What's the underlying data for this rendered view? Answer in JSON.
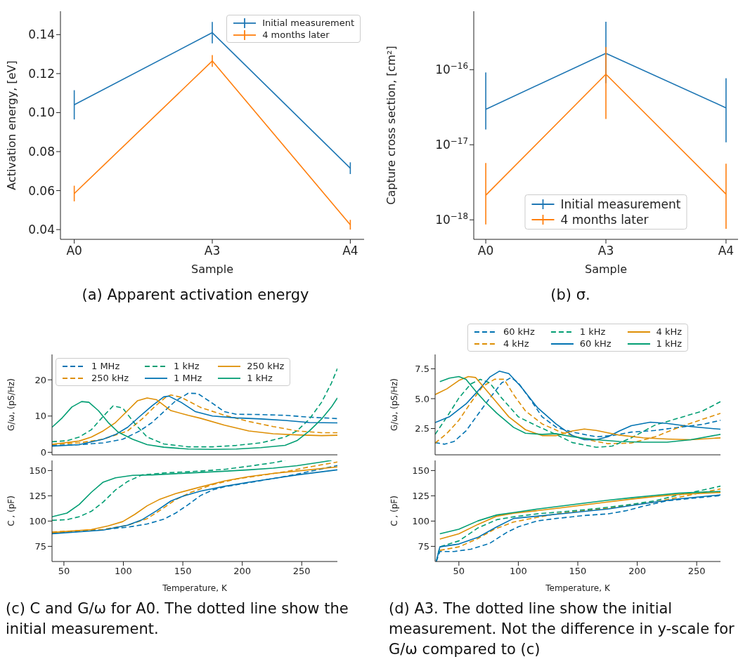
{
  "chart_data": [
    {
      "type": "line",
      "xlabel": "Sample",
      "ylabel": "Activation energy, [eV]",
      "categories": [
        "A0",
        "A3",
        "A4"
      ],
      "ylim": [
        0.035,
        0.152
      ],
      "yticks": [
        0.04,
        0.06,
        0.08,
        {
          "value": 0.1,
          "label": "0.10"
        },
        0.12,
        0.14
      ],
      "legend": "top right",
      "annotations": [
        "(a) Apparent activation energy"
      ],
      "series": [
        {
          "name": "Initial measurement",
          "color": "#1f77b4",
          "values": [
            0.104,
            0.141,
            0.0715
          ],
          "errors": [
            0.0075,
            0.0055,
            0.003
          ]
        },
        {
          "name": "4 months later",
          "color": "#ff7f0e",
          "values": [
            0.0585,
            0.1265,
            0.0425
          ],
          "errors": [
            0.004,
            0.003,
            0.0025
          ]
        }
      ]
    },
    {
      "type": "line",
      "xlabel": "Sample",
      "ylabel": "Capture cross section, [cm²]",
      "categories": [
        "A0",
        "A3",
        "A4"
      ],
      "log": "y",
      "ylim": [
        5.5e-19,
        6e-16
      ],
      "yticks": [
        {
          "value": 1e-18,
          "label": "10$^{−18}$"
        },
        {
          "value": 1e-17,
          "label": "10$^{−17}$"
        },
        {
          "value": 1e-16,
          "label": "10$^{−16}$"
        }
      ],
      "legend": "bottom",
      "annotations": [
        "(b) σ."
      ],
      "series": [
        {
          "name": "Initial measurement",
          "color": "#1f77b4",
          "values": [
            2.97e-17,
            1.65e-16,
            3.1e-17
          ],
          "errors": [
            [
              1.6e-17,
              9.2e-17
            ],
            [
              6.6e-17,
              4.35e-16
            ],
            [
              1.08e-17,
              7.7e-17
            ]
          ]
        },
        {
          "name": "4 months later",
          "color": "#ff7f0e",
          "values": [
            2.13e-18,
            8.7e-17,
            2.2e-18
          ],
          "errors": [
            [
              8.7e-19,
              5.7e-18
            ],
            [
              2.2e-17,
              2e-16
            ],
            [
              7.6e-19,
              5.6e-18
            ]
          ]
        }
      ]
    },
    {
      "type": "line",
      "ylabel": "G/ω, (pS/Hz)",
      "xlim": [
        40,
        280
      ],
      "ylim": [
        -0.7,
        27
      ],
      "yticks": [
        0,
        10,
        20
      ],
      "tick_labels": "y",
      "legend": "top left",
      "series": [
        {
          "name": "1 MHz",
          "color": "#0173b2",
          "line_style": "dashed",
          "x": [
            40,
            62.8,
            83,
            99.5,
            113.8,
            124,
            134,
            144,
            154.6,
            162.7,
            175,
            185,
            195,
            215.7,
            236,
            256.5,
            280
          ],
          "values": [
            1.9,
            2.1,
            2.6,
            3.6,
            5.9,
            8.2,
            11.2,
            14.2,
            16.3,
            16.2,
            13.5,
            11.2,
            10.5,
            10.4,
            10.2,
            9.7,
            9.3
          ]
        },
        {
          "name": "250 kHz",
          "color": "#de8f05",
          "line_style": "dashed",
          "x": [
            40,
            62.8,
            83,
            103.6,
            115.8,
            126,
            136,
            140,
            148.5,
            164.8,
            185,
            205.5,
            226,
            246,
            266.7,
            280
          ],
          "values": [
            2.2,
            2.6,
            3.6,
            5.9,
            9.2,
            12.5,
            15.3,
            15.8,
            15.2,
            12.4,
            10.2,
            8.5,
            7.1,
            5.9,
            5.4,
            5.4
          ]
        },
        {
          "name": "1 kHz",
          "color": "#029e73",
          "line_style": "dashed",
          "x": [
            40,
            52.6,
            62.8,
            73,
            83,
            91.4,
            99.5,
            109.7,
            120,
            134,
            154.6,
            175,
            195,
            215.7,
            236,
            246,
            256.5,
            266.7,
            275,
            280
          ],
          "values": [
            2.9,
            3.2,
            4.2,
            6.2,
            9.9,
            12.8,
            12.2,
            7.9,
            4.2,
            2.3,
            1.5,
            1.5,
            1.9,
            2.6,
            4.2,
            5.9,
            9.2,
            13.8,
            19.1,
            23.1
          ]
        },
        {
          "name": "1 MHz",
          "color": "#0173b2",
          "line_style": "solid",
          "x": [
            40,
            62.8,
            83,
            93.4,
            103.6,
            113.8,
            124,
            134,
            138.3,
            148.5,
            160.7,
            175,
            195,
            215.7,
            236,
            256.5,
            280
          ],
          "values": [
            1.7,
            2.1,
            3.6,
            4.9,
            6.9,
            9.9,
            12.8,
            15.3,
            15.5,
            13.8,
            11.2,
            10,
            9.5,
            9.2,
            8.8,
            8.2,
            8.1
          ]
        },
        {
          "name": "250 kHz",
          "color": "#de8f05",
          "line_style": "solid",
          "x": [
            40,
            62.8,
            73,
            83,
            93.4,
            103.6,
            111.8,
            120,
            128,
            140,
            154.6,
            164.8,
            185,
            205.5,
            226,
            246,
            266.7,
            280
          ],
          "values": [
            2.2,
            3.1,
            4.2,
            5.9,
            8.2,
            11.5,
            14.2,
            15,
            14.5,
            11.5,
            10.2,
            9.4,
            7.5,
            5.9,
            5.1,
            4.8,
            4.6,
            4.7
          ]
        },
        {
          "name": "1 kHz",
          "color": "#029e73",
          "line_style": "solid",
          "x": [
            40,
            48.6,
            56.7,
            64.9,
            71,
            79,
            87.3,
            95.5,
            107.7,
            120,
            134,
            154.6,
            175,
            195,
            215.7,
            236,
            246,
            256.5,
            266.7,
            275,
            280
          ],
          "values": [
            6.9,
            9.5,
            12.5,
            14,
            13.8,
            11.5,
            8.2,
            5.6,
            3.6,
            2.1,
            1.4,
            0.9,
            0.8,
            0.9,
            1.3,
            1.9,
            3.2,
            5.9,
            9.2,
            12.5,
            15
          ]
        }
      ]
    },
    {
      "type": "line",
      "xlabel": "Temperature, K",
      "ylabel": "C , (pF)",
      "xlim": [
        40,
        280
      ],
      "xticks": [
        50,
        100,
        150,
        200,
        250
      ],
      "ylim": [
        60,
        160
      ],
      "yticks": [
        75,
        100,
        125,
        150
      ],
      "annotations": [
        "(c) C and G/ω for A0. The dotted line show the initial measurement."
      ],
      "series": [
        {
          "color": "#0173b2",
          "line_style": "dashed",
          "x": [
            40,
            83,
            103.6,
            120,
            134,
            144,
            154.6,
            164.8,
            175,
            185,
            205.5,
            226,
            246,
            280
          ],
          "values": [
            88,
            91.6,
            94,
            97.1,
            101.9,
            107.9,
            116.3,
            125.2,
            130.8,
            133.9,
            138,
            142.1,
            146.4,
            155
          ]
        },
        {
          "color": "#de8f05",
          "line_style": "dashed",
          "x": [
            40,
            83,
            103.6,
            120,
            132,
            144,
            156.6,
            175,
            195,
            215.7,
            236,
            256.5,
            280
          ],
          "values": [
            89.2,
            91.8,
            95.9,
            102.4,
            111.5,
            121.2,
            128.4,
            136.1,
            141.6,
            145.2,
            148.8,
            153.6,
            158.4
          ]
        },
        {
          "color": "#029e73",
          "line_style": "dashed",
          "x": [
            40,
            52.6,
            62.8,
            73,
            83,
            93.4,
            103.6,
            115.8,
            134,
            164.8,
            185,
            205.5,
            226,
            236
          ],
          "values": [
            100.7,
            101.4,
            104.3,
            109.6,
            118.8,
            130.8,
            139.2,
            145.7,
            147.6,
            149.5,
            151.2,
            154.3,
            157.7,
            160
          ]
        },
        {
          "color": "#0173b2",
          "line_style": "solid",
          "x": [
            40,
            83,
            103.6,
            115.8,
            128,
            140,
            150.5,
            164.8,
            185,
            205.5,
            226,
            246,
            280
          ],
          "values": [
            87.5,
            91.1,
            95.9,
            101.4,
            110.3,
            119.9,
            124.8,
            129.6,
            134.4,
            138.5,
            142.1,
            145.7,
            150.7
          ]
        },
        {
          "color": "#de8f05",
          "line_style": "solid",
          "x": [
            40,
            73,
            87.3,
            99.5,
            109.7,
            120,
            130,
            144,
            164.8,
            185,
            205.5,
            226,
            246,
            280
          ],
          "values": [
            88.7,
            91.6,
            95.2,
            99.5,
            106.7,
            115.1,
            121.2,
            127.2,
            133.7,
            139.7,
            144,
            147.1,
            149.5,
            153.6
          ]
        },
        {
          "color": "#029e73",
          "line_style": "solid",
          "x": [
            40,
            52.6,
            62.8,
            73,
            83,
            93.4,
            107.7,
            124,
            144,
            164.8,
            185,
            205.5,
            226,
            246,
            266.7,
            275
          ],
          "values": [
            104.3,
            107.9,
            116.3,
            128.4,
            138.5,
            142.8,
            145.2,
            145.7,
            146.9,
            148.1,
            149.3,
            150.7,
            152.4,
            154.8,
            158.4,
            160
          ]
        }
      ]
    },
    {
      "type": "line",
      "ylabel": "G/ω, (pS/Hz)",
      "xlim": [
        30,
        270
      ],
      "ylim": [
        0.3,
        8.7
      ],
      "yticks": [
        2.5,
        {
          "value": 5,
          "label": "5.0"
        },
        7.5
      ],
      "tick_labels": "y",
      "legend": "top",
      "series": [
        {
          "name": "60 kHz",
          "color": "#0173b2",
          "line_style": "dashed",
          "x": [
            30,
            38,
            46,
            56,
            66,
            76,
            86,
            94,
            100,
            110,
            120,
            132,
            145.5,
            165.5,
            179,
            195,
            215,
            235,
            255,
            270
          ],
          "values": [
            1.32,
            1.19,
            1.42,
            2.3,
            3.68,
            5.05,
            6.32,
            6.77,
            6.32,
            4.95,
            3.48,
            2.6,
            2.2,
            1.81,
            1.91,
            2.2,
            2.34,
            2.6,
            2.85,
            3.19
          ]
        },
        {
          "name": "4 kHz",
          "color": "#de8f05",
          "line_style": "dashed",
          "x": [
            30,
            40,
            50,
            60,
            70,
            80,
            88,
            96,
            106,
            120,
            135.6,
            155.5,
            175.4,
            195,
            215,
            235,
            255,
            270
          ],
          "values": [
            1.28,
            2.1,
            3.19,
            4.66,
            6.03,
            6.62,
            6.62,
            5.34,
            3.97,
            2.89,
            2.2,
            1.62,
            1.23,
            1.28,
            1.81,
            2.6,
            3.28,
            3.77
          ]
        },
        {
          "name": "1 kHz",
          "color": "#029e73",
          "line_style": "dashed",
          "x": [
            30,
            40,
            50,
            60,
            68,
            76,
            86,
            100,
            116,
            131.6,
            145.5,
            165.5,
            179,
            195,
            215,
            235,
            255,
            270
          ],
          "values": [
            2.01,
            3.48,
            5.05,
            6.23,
            6.62,
            6.32,
            5.05,
            3.48,
            2.7,
            2.01,
            1.32,
            0.93,
            1.03,
            1.72,
            2.79,
            3.38,
            3.97,
            4.75
          ]
        },
        {
          "name": "60 kHz",
          "color": "#0173b2",
          "line_style": "solid",
          "x": [
            30,
            42,
            56,
            66,
            76,
            84,
            92,
            102,
            116,
            131.6,
            145.5,
            155.5,
            165.5,
            175.4,
            185,
            195,
            211,
            225,
            245,
            270
          ],
          "values": [
            3,
            3.48,
            4.56,
            5.64,
            6.81,
            7.3,
            7.1,
            6.03,
            4.26,
            2.89,
            1.91,
            1.56,
            1.56,
            1.81,
            2.3,
            2.74,
            3.03,
            2.93,
            2.66,
            2.44
          ]
        },
        {
          "name": "4 kHz",
          "color": "#de8f05",
          "line_style": "solid",
          "x": [
            30,
            40,
            50,
            58,
            64,
            72,
            82,
            92,
            106,
            120,
            132,
            145.5,
            155.5,
            165.5,
            185,
            205,
            225,
            245,
            270
          ],
          "values": [
            5.34,
            5.83,
            6.52,
            6.85,
            6.77,
            5.83,
            4.66,
            3.48,
            2.4,
            1.91,
            1.91,
            2.3,
            2.46,
            2.34,
            1.95,
            1.72,
            1.62,
            1.56,
            1.72
          ]
        },
        {
          "name": "1 kHz",
          "color": "#029e73",
          "line_style": "solid",
          "x": [
            34,
            42,
            50,
            56,
            64,
            72,
            82,
            96,
            106,
            120,
            131.6,
            145.5,
            165.5,
            185,
            205,
            225,
            245,
            270
          ],
          "values": [
            6.42,
            6.72,
            6.85,
            6.62,
            5.64,
            4.75,
            3.77,
            2.6,
            2.11,
            2.01,
            2.07,
            1.81,
            1.56,
            1.42,
            1.36,
            1.36,
            1.56,
            2.01
          ]
        }
      ]
    },
    {
      "type": "line",
      "xlabel": "Temperature, K",
      "ylabel": "C , (pF)",
      "xlim": [
        30,
        270
      ],
      "xticks": [
        50,
        100,
        150,
        200,
        250
      ],
      "ylim": [
        60,
        160
      ],
      "yticks": [
        75,
        100,
        125,
        150
      ],
      "annotations": [
        "(d) A3. The dotted line show the initial measurement. Not the difference in y-scale for G/ω compared to (c)"
      ],
      "series": [
        {
          "color": "#0173b2",
          "line_style": "dashed",
          "x": [
            31,
            34,
            46,
            60,
            76,
            90,
            100,
            116,
            132,
            156,
            176,
            191,
            205,
            225,
            245,
            270
          ],
          "values": [
            60,
            69.9,
            69.9,
            72.2,
            78,
            88.6,
            94.4,
            100.2,
            102.6,
            105.6,
            107.2,
            110.3,
            114.7,
            120.1,
            122.4,
            125.2
          ]
        },
        {
          "color": "#de8f05",
          "line_style": "dashed",
          "x": [
            34,
            50,
            66,
            80,
            96,
            116,
            136,
            156,
            175,
            195,
            215,
            235,
            255,
            270
          ],
          "values": [
            71,
            74.5,
            82.7,
            92,
            99.1,
            103.7,
            107.9,
            110.3,
            112.6,
            115.9,
            118.9,
            123.6,
            128.3,
            131.8
          ]
        },
        {
          "color": "#029e73",
          "line_style": "dashed",
          "x": [
            31,
            34,
            50,
            66,
            82,
            96,
            116,
            136,
            156,
            175,
            195,
            215,
            235,
            255,
            270
          ],
          "values": [
            60,
            74.5,
            80.4,
            93.2,
            101.4,
            104.2,
            107.2,
            109.1,
            111.2,
            113.6,
            116.6,
            120.1,
            125.9,
            130.6,
            134.6
          ]
        },
        {
          "color": "#0173b2",
          "line_style": "solid",
          "x": [
            31,
            34,
            50,
            66,
            82,
            96,
            116,
            136,
            156,
            175,
            195,
            215,
            235,
            270
          ],
          "values": [
            60,
            74.5,
            77.3,
            83.9,
            94.4,
            102.6,
            104.9,
            107.2,
            109.6,
            111.9,
            115.4,
            118.9,
            122,
            125.9
          ]
        },
        {
          "color": "#de8f05",
          "line_style": "solid",
          "x": [
            34,
            50,
            66,
            82,
            96,
            116,
            136,
            156,
            175,
            195,
            215,
            235,
            270
          ],
          "values": [
            82.2,
            87.4,
            96.7,
            104.9,
            107.7,
            110.3,
            113.1,
            116.1,
            118.9,
            121.7,
            124.3,
            126.4,
            128.3
          ]
        },
        {
          "color": "#029e73",
          "line_style": "solid",
          "x": [
            34,
            50,
            66,
            82,
            96,
            116,
            136,
            156,
            175,
            195,
            215,
            235,
            270
          ],
          "values": [
            87.4,
            92,
            100.2,
            106.1,
            108.4,
            111.9,
            114.9,
            117.8,
            120.6,
            123.1,
            125.5,
            127.6,
            129.4
          ]
        }
      ]
    }
  ]
}
